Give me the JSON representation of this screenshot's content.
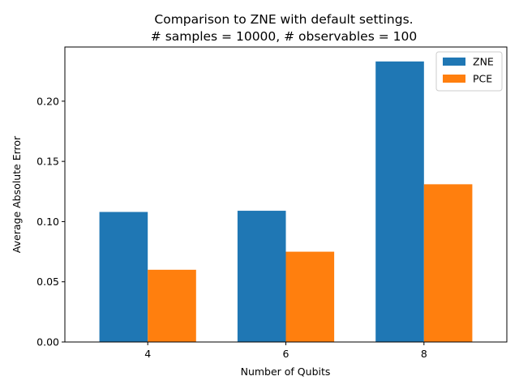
{
  "chart_data": {
    "type": "bar",
    "title": "Comparison to ZNE with default settings.",
    "subtitle": "# samples = 10000, # observables = 100",
    "xlabel": "Number of Qubits",
    "ylabel": "Average Absolute Error",
    "categories": [
      "4",
      "6",
      "8"
    ],
    "series": [
      {
        "name": "ZNE",
        "color": "#1f77b4",
        "values": [
          0.108,
          0.109,
          0.233
        ]
      },
      {
        "name": "PCE",
        "color": "#ff7f0e",
        "values": [
          0.06,
          0.075,
          0.131
        ]
      }
    ],
    "ylim": [
      0,
      0.245
    ],
    "yticks": [
      0.0,
      0.05,
      0.1,
      0.15,
      0.2
    ],
    "ytick_labels": [
      "0.00",
      "0.05",
      "0.10",
      "0.15",
      "0.20"
    ],
    "grid": false,
    "legend_position": "top-right"
  }
}
